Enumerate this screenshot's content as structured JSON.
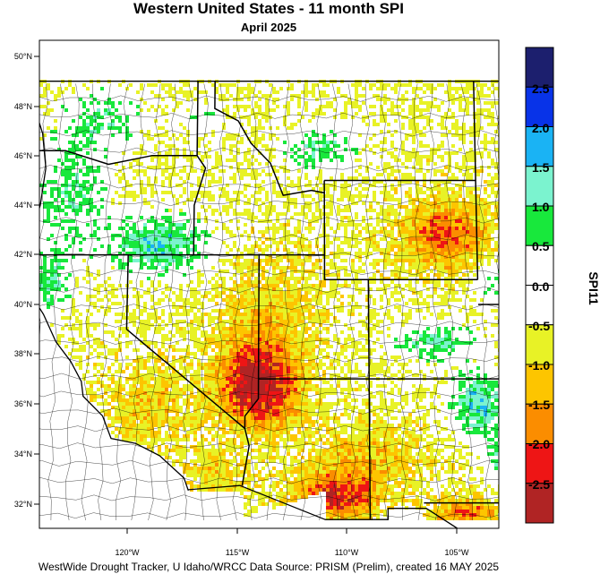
{
  "header": {
    "title": "Western United States - 11 month SPI",
    "subtitle": "April 2025"
  },
  "footer": {
    "credit": "WestWide Drought Tracker, U Idaho/WRCC Data Source: PRISM (Prelim), created 16 MAY 2025"
  },
  "map": {
    "lat_labels": [
      "50°N",
      "48°N",
      "46°N",
      "44°N",
      "42°N",
      "40°N",
      "38°N",
      "36°N",
      "34°N",
      "32°N"
    ],
    "lon_labels": [
      "120°W",
      "115°W",
      "110°W",
      "105°W"
    ],
    "extent": {
      "lon_min": -124.7,
      "lon_max": -102.0,
      "lat_min": 31.0,
      "lat_max": 50.6
    }
  },
  "colorbar": {
    "title": "SPI11",
    "labels": [
      "2.5",
      "2.0",
      "1.5",
      "1.0",
      "0.5",
      "0.0",
      "-0.5",
      "-1.0",
      "-1.5",
      "-2.0",
      "-2.5"
    ],
    "colors": [
      "#1c1f6e",
      "#0833e8",
      "#1ab3f4",
      "#7bf3cf",
      "#18e83c",
      "#ffffff",
      "#ffffff",
      "#e8f226",
      "#fdc500",
      "#fb8d00",
      "#ee1515",
      "#b02424"
    ]
  }
}
